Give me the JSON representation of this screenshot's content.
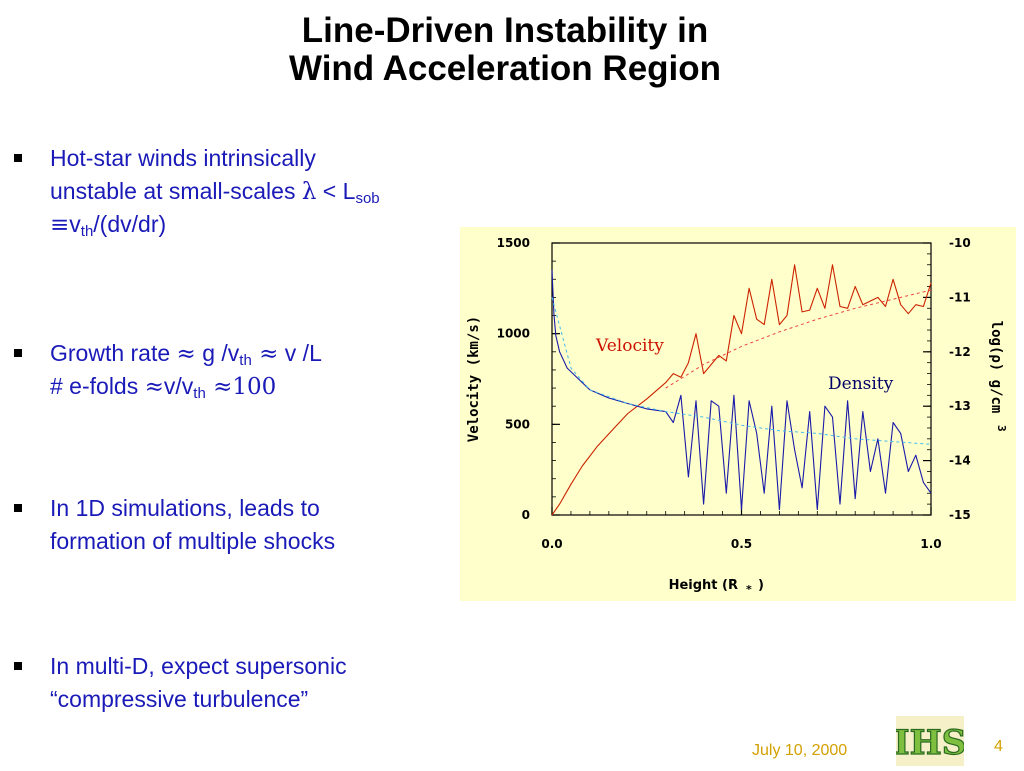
{
  "slide": {
    "title_line1": "Line-Driven Instability in",
    "title_line2": "Wind Acceleration Region",
    "footer_date": "July 10, 2000",
    "page_number": "4",
    "logo_text": "IHS",
    "colors": {
      "bullet_text": "#1a1ab8",
      "footer": "#d4a000",
      "chart_bg": "#ffffcc"
    }
  },
  "bullets": [
    {
      "line1": "Hot-star winds intrinsically",
      "line2_pre": "unstable at small-scales ",
      "lambda": "λ",
      "lt": " < L",
      "sob": "sob",
      "equiv": "≡",
      "v": "v",
      "th": "th",
      "rest": "/(dv/dr)"
    },
    {
      "line1_pre": "Growth rate ",
      "approx1": "≈",
      "g": " g /v",
      "th": "th",
      "approx2": " ≈",
      "vl": " v  /L",
      "line2_pre": "# e-folds ",
      "approx3": "≈",
      "vv": "v/v",
      "th2": "th",
      "approx4": " ≈",
      "hundred": "100"
    },
    {
      "line1": "In 1D simulations, leads to",
      "line2": "formation of multiple shocks"
    },
    {
      "line1": "In multi-D, expect supersonic",
      "line2": "“compressive turbulence”"
    }
  ],
  "chart_data": {
    "type": "line",
    "xlabel": "Height (R",
    "xlabel_sub": "*",
    "xlabel_close": ")",
    "ylabel_left": "Velocity (km/s)",
    "ylabel_right": "log(ρ) g/cm",
    "ylabel_right_sup": "3",
    "xlim": [
      0.0,
      1.0
    ],
    "ylim_left": [
      0,
      1500
    ],
    "ylim_right": [
      -15,
      -10
    ],
    "x_ticks": [
      "0.0",
      "0.5",
      "1.0"
    ],
    "y_ticks_left": [
      "0",
      "500",
      "1000",
      "1500"
    ],
    "y_ticks_right": [
      "-10",
      "-11",
      "-12",
      "-13",
      "-14",
      "-15"
    ],
    "series": [
      {
        "name": "Velocity",
        "axis": "left",
        "color": "#cc2200",
        "x": [
          0.0,
          0.02,
          0.05,
          0.08,
          0.12,
          0.16,
          0.2,
          0.25,
          0.3,
          0.32,
          0.34,
          0.36,
          0.38,
          0.4,
          0.42,
          0.44,
          0.46,
          0.48,
          0.5,
          0.52,
          0.54,
          0.56,
          0.58,
          0.6,
          0.62,
          0.64,
          0.66,
          0.68,
          0.7,
          0.72,
          0.74,
          0.76,
          0.78,
          0.8,
          0.82,
          0.84,
          0.86,
          0.88,
          0.9,
          0.92,
          0.94,
          0.96,
          0.98,
          1.0
        ],
        "values": [
          0,
          60,
          170,
          270,
          380,
          470,
          560,
          640,
          730,
          780,
          760,
          840,
          1000,
          780,
          830,
          880,
          850,
          1100,
          1000,
          1250,
          1080,
          1050,
          1300,
          1050,
          1100,
          1380,
          1120,
          1130,
          1250,
          1140,
          1380,
          1150,
          1140,
          1260,
          1160,
          1180,
          1200,
          1150,
          1300,
          1160,
          1110,
          1160,
          1150,
          1280
        ]
      },
      {
        "name": "Density",
        "axis": "right",
        "color": "#1a1aaa",
        "x": [
          0.0,
          0.005,
          0.01,
          0.02,
          0.04,
          0.07,
          0.1,
          0.15,
          0.2,
          0.25,
          0.3,
          0.32,
          0.34,
          0.36,
          0.38,
          0.4,
          0.42,
          0.44,
          0.46,
          0.48,
          0.5,
          0.52,
          0.54,
          0.56,
          0.58,
          0.6,
          0.62,
          0.64,
          0.66,
          0.68,
          0.7,
          0.72,
          0.74,
          0.76,
          0.78,
          0.8,
          0.82,
          0.84,
          0.86,
          0.88,
          0.9,
          0.92,
          0.94,
          0.96,
          0.98,
          1.0
        ],
        "values": [
          -10.5,
          -11.3,
          -11.7,
          -12.0,
          -12.3,
          -12.5,
          -12.7,
          -12.85,
          -12.95,
          -13.05,
          -13.1,
          -13.3,
          -12.8,
          -14.3,
          -12.9,
          -14.8,
          -12.9,
          -13.0,
          -14.6,
          -12.8,
          -14.9,
          -12.9,
          -13.5,
          -14.6,
          -13.0,
          -14.9,
          -12.9,
          -13.8,
          -14.5,
          -13.1,
          -14.9,
          -13.0,
          -13.2,
          -14.8,
          -12.9,
          -14.7,
          -13.1,
          -14.2,
          -13.6,
          -14.6,
          -13.3,
          -13.5,
          -14.2,
          -13.9,
          -14.4,
          -14.6
        ]
      },
      {
        "name": "",
        "axis": "left",
        "color": "#ee4444",
        "style": "dashed",
        "x": [
          0.3,
          0.4,
          0.5,
          0.6,
          0.7,
          0.8,
          0.9,
          1.0
        ],
        "values": [
          700,
          830,
          930,
          1010,
          1080,
          1140,
          1190,
          1240
        ]
      },
      {
        "name": "",
        "axis": "right",
        "color": "#44bbee",
        "style": "dashed",
        "x": [
          0.0,
          0.05,
          0.1,
          0.2,
          0.3,
          0.4,
          0.5,
          0.6,
          0.7,
          0.8,
          0.9,
          1.0
        ],
        "values": [
          -11.0,
          -12.3,
          -12.7,
          -12.95,
          -13.1,
          -13.2,
          -13.35,
          -13.45,
          -13.5,
          -13.6,
          -13.65,
          -13.7
        ]
      }
    ],
    "annotations": [
      {
        "text": "Velocity",
        "color": "#cc1100"
      },
      {
        "text": "Density",
        "color": "#000066"
      }
    ],
    "grid": false
  }
}
